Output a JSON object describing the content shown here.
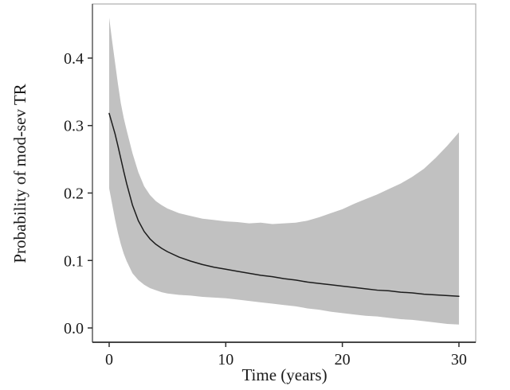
{
  "figure": {
    "background": "#ffffff"
  },
  "chart_data": {
    "type": "line",
    "title": "",
    "xlabel": "Time (years)",
    "ylabel": "Probability of mod-sev TR",
    "xlim": [
      -1.435,
      31.44
    ],
    "ylim": [
      -0.0212,
      0.4802
    ],
    "xticks": [
      0,
      10,
      20,
      30
    ],
    "xtick_labels": [
      "0",
      "10",
      "20",
      "30"
    ],
    "yticks": [
      0.0,
      0.1,
      0.2,
      0.3,
      0.4
    ],
    "ytick_labels": [
      "0.0",
      "0.1",
      "0.2",
      "0.3",
      "0.4"
    ],
    "grid": false,
    "legend": "none",
    "band_color": "#c1c1c1",
    "line_color": "#1c1c1c",
    "x": [
      0,
      0.25,
      0.5,
      0.75,
      1,
      1.25,
      1.5,
      2,
      2.5,
      3,
      3.5,
      4,
      4.5,
      5,
      6,
      7,
      8,
      9,
      10,
      11,
      12,
      13,
      14,
      15,
      16,
      17,
      18,
      19,
      20,
      21,
      22,
      23,
      24,
      25,
      26,
      27,
      28,
      29,
      30
    ],
    "series": [
      {
        "name": "mean-estimate",
        "values": [
          0.318,
          0.303,
          0.288,
          0.27,
          0.251,
          0.232,
          0.214,
          0.182,
          0.159,
          0.143,
          0.132,
          0.124,
          0.118,
          0.113,
          0.105,
          0.099,
          0.094,
          0.09,
          0.087,
          0.084,
          0.081,
          0.078,
          0.076,
          0.073,
          0.071,
          0.068,
          0.066,
          0.064,
          0.062,
          0.06,
          0.058,
          0.056,
          0.055,
          0.053,
          0.052,
          0.05,
          0.049,
          0.048,
          0.047
        ]
      },
      {
        "name": "ci-upper",
        "values": [
          0.46,
          0.426,
          0.394,
          0.362,
          0.333,
          0.311,
          0.293,
          0.259,
          0.231,
          0.21,
          0.197,
          0.188,
          0.182,
          0.177,
          0.17,
          0.166,
          0.162,
          0.16,
          0.158,
          0.157,
          0.155,
          0.156,
          0.154,
          0.155,
          0.156,
          0.159,
          0.164,
          0.17,
          0.176,
          0.184,
          0.191,
          0.198,
          0.206,
          0.214,
          0.224,
          0.236,
          0.252,
          0.27,
          0.29
        ]
      },
      {
        "name": "ci-lower",
        "values": [
          0.207,
          0.184,
          0.161,
          0.141,
          0.124,
          0.11,
          0.099,
          0.081,
          0.071,
          0.064,
          0.059,
          0.056,
          0.053,
          0.051,
          0.049,
          0.048,
          0.046,
          0.045,
          0.044,
          0.042,
          0.04,
          0.038,
          0.036,
          0.034,
          0.032,
          0.029,
          0.027,
          0.024,
          0.022,
          0.02,
          0.018,
          0.017,
          0.015,
          0.013,
          0.012,
          0.01,
          0.008,
          0.006,
          0.005
        ]
      }
    ]
  }
}
